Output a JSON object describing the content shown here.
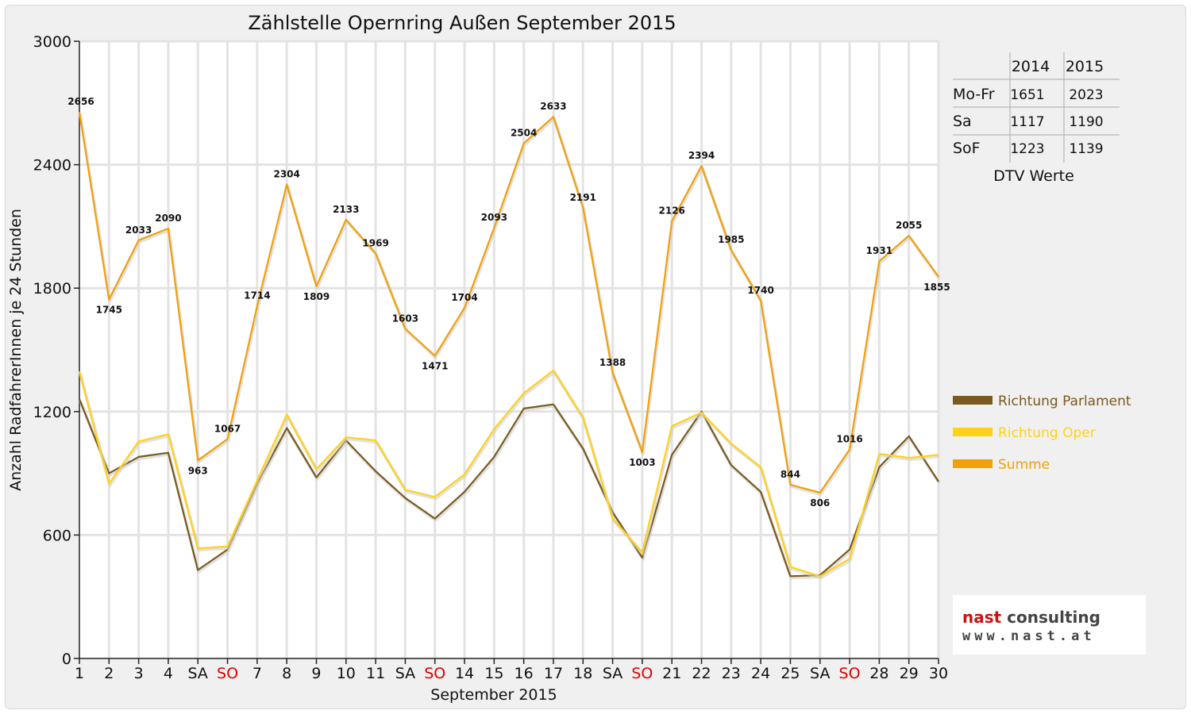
{
  "chart_data": {
    "type": "line",
    "title": "Zählstelle Opernring Außen September 2015",
    "xlabel": "September 2015",
    "ylabel": "Anzahl RadfahrerInnen je 24 Stunden",
    "ylim": [
      0,
      3000
    ],
    "yticks": [
      0,
      600,
      1200,
      1800,
      2400,
      3000
    ],
    "grid": true,
    "legend_position": "right",
    "categories": [
      "1",
      "2",
      "3",
      "4",
      "SA",
      "SO",
      "7",
      "8",
      "9",
      "10",
      "11",
      "SA",
      "SO",
      "14",
      "15",
      "16",
      "17",
      "18",
      "SA",
      "SO",
      "21",
      "22",
      "23",
      "24",
      "25",
      "SA",
      "SO",
      "28",
      "29",
      "30"
    ],
    "sunday_indices": [
      5,
      12,
      19,
      26
    ],
    "series": [
      {
        "name": "Richtung Parlament",
        "color": "#7a5a1e",
        "values": [
          1260,
          900,
          980,
          1000,
          430,
          530,
          850,
          1120,
          880,
          1060,
          910,
          780,
          680,
          810,
          980,
          1215,
          1235,
          1020,
          710,
          490,
          990,
          1200,
          940,
          810,
          400,
          405,
          530,
          930,
          1080,
          860
        ]
      },
      {
        "name": "Richtung Oper",
        "color": "#ffd21a",
        "values": [
          1395,
          850,
          1055,
          1090,
          535,
          545,
          865,
          1185,
          920,
          1075,
          1060,
          820,
          785,
          895,
          1115,
          1290,
          1400,
          1170,
          680,
          515,
          1130,
          1195,
          1045,
          930,
          445,
          400,
          485,
          995,
          975,
          990
        ]
      },
      {
        "name": "Summe",
        "color": "#f0a10a",
        "values": [
          2656,
          1745,
          2033,
          2090,
          963,
          1067,
          1714,
          2304,
          1809,
          2133,
          1969,
          1603,
          1471,
          1704,
          2093,
          2504,
          2633,
          2191,
          1388,
          1003,
          2126,
          2394,
          1985,
          1740,
          844,
          806,
          1016,
          1931,
          2055,
          1855
        ]
      }
    ],
    "data_labels_series": "Summe"
  },
  "dtv_table": {
    "headers": [
      "",
      "2014",
      "2015"
    ],
    "rows": [
      {
        "label": "Mo-Fr",
        "v2014": "1651",
        "v2015": "2023"
      },
      {
        "label": "Sa",
        "v2014": "1117",
        "v2015": "1190"
      },
      {
        "label": "SoF",
        "v2014": "1223",
        "v2015": "1139"
      }
    ],
    "caption": "DTV Werte"
  },
  "logo": {
    "name_red": "nast",
    "name_rest": " consulting",
    "url": "www.nast.at"
  }
}
